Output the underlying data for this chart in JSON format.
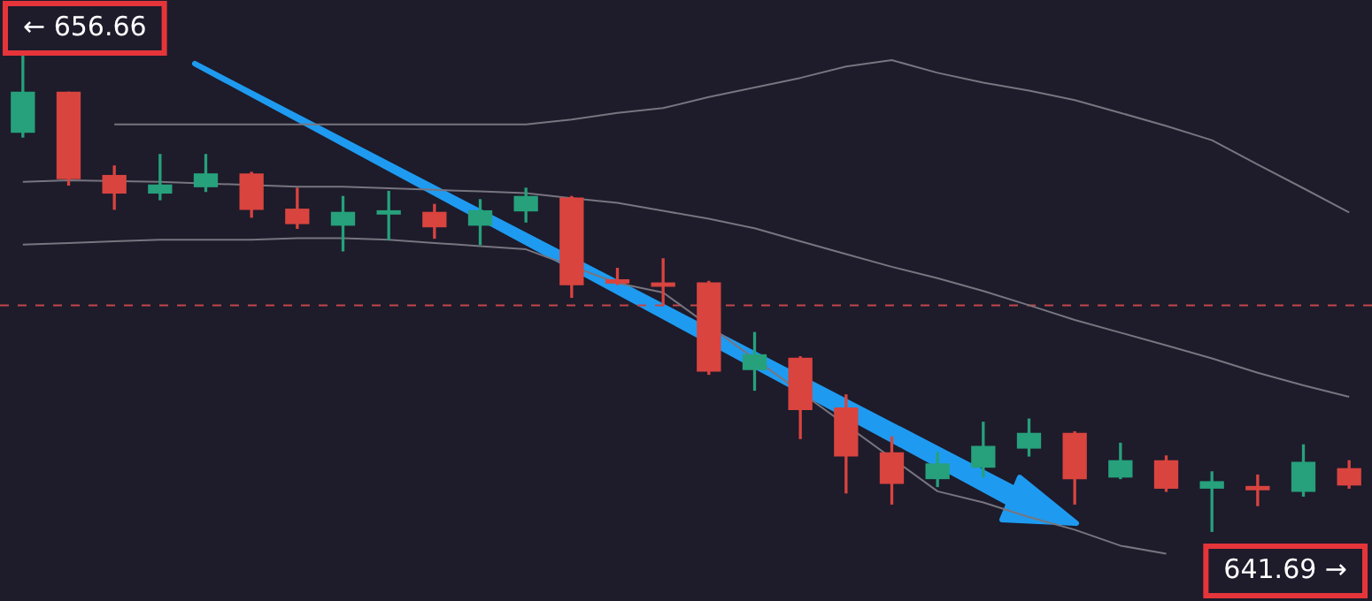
{
  "chart_data": {
    "type": "candlestick",
    "categories": [
      null,
      null,
      null,
      null,
      null,
      null,
      null,
      null,
      null,
      null,
      null,
      null,
      null,
      null,
      null,
      null,
      null,
      null,
      null,
      null,
      null,
      null,
      null,
      null,
      null,
      null,
      null,
      null,
      null,
      null
    ],
    "ohlc": [
      [
        654.24,
        656.66,
        654.09,
        655.5
      ],
      [
        655.5,
        655.5,
        652.58,
        652.78
      ],
      [
        652.88,
        653.18,
        651.82,
        652.33
      ],
      [
        652.33,
        653.54,
        652.12,
        652.58
      ],
      [
        652.53,
        653.54,
        652.38,
        652.93
      ],
      [
        652.93,
        652.98,
        651.57,
        651.82
      ],
      [
        651.82,
        652.48,
        651.22,
        651.37
      ],
      [
        651.32,
        652.22,
        650.51,
        651.72
      ],
      [
        651.67,
        652.38,
        650.86,
        651.77
      ],
      [
        651.72,
        651.97,
        650.91,
        651.27
      ],
      [
        651.32,
        652.12,
        650.71,
        651.77
      ],
      [
        651.77,
        652.48,
        651.42,
        652.22
      ],
      [
        652.17,
        652.22,
        649.05,
        649.45
      ],
      [
        649.6,
        649.96,
        649.45,
        649.5
      ],
      [
        649.5,
        650.26,
        648.8,
        649.4
      ],
      [
        649.5,
        649.55,
        646.63,
        646.73
      ],
      [
        646.78,
        647.94,
        646.13,
        647.24
      ],
      [
        647.13,
        647.18,
        644.61,
        645.52
      ],
      [
        645.57,
        645.98,
        642.9,
        644.06
      ],
      [
        644.16,
        644.66,
        642.55,
        643.2
      ],
      [
        643.35,
        644.16,
        643.1,
        643.81
      ],
      [
        643.71,
        645.12,
        643.4,
        644.36
      ],
      [
        644.31,
        645.22,
        644.06,
        644.77
      ],
      [
        644.77,
        644.82,
        642.55,
        643.35
      ],
      [
        643.4,
        644.46,
        643.35,
        643.91
      ],
      [
        643.91,
        644.06,
        642.95,
        643.05
      ],
      [
        643.05,
        643.56,
        641.69,
        643.25
      ],
      [
        643.1,
        643.46,
        642.5,
        643.0
      ],
      [
        642.95,
        644.41,
        642.8,
        643.86
      ],
      [
        643.66,
        643.91,
        643.05,
        643.15
      ]
    ],
    "colors": [
      "#26a17b",
      "#d9443f",
      "#d9443f",
      "#26a17b",
      "#26a17b",
      "#d9443f",
      "#d9443f",
      "#26a17b",
      "#26a17b",
      "#d9443f",
      "#26a17b",
      "#26a17b",
      "#d9443f",
      "#d9443f",
      "#d9443f",
      "#d9443f",
      "#26a17b",
      "#d9443f",
      "#d9443f",
      "#d9443f",
      "#26a17b",
      "#26a17b",
      "#26a17b",
      "#d9443f",
      "#26a17b",
      "#d9443f",
      "#26a17b",
      "#d9443f",
      "#26a17b",
      "#d9443f"
    ],
    "series": [
      {
        "type": "line",
        "color": "#77757f",
        "values": [
          null,
          null,
          654.49,
          654.49,
          654.49,
          654.49,
          654.49,
          654.49,
          654.49,
          654.49,
          654.49,
          654.49,
          654.64,
          654.85,
          655.0,
          655.35,
          655.65,
          655.95,
          656.31,
          656.51,
          656.11,
          655.8,
          655.55,
          655.25,
          654.85,
          654.44,
          653.99,
          653.23,
          652.48,
          651.72
        ]
      },
      {
        "type": "line",
        "color": "#77757f",
        "values": [
          652.68,
          652.73,
          null,
          652.68,
          null,
          null,
          652.53,
          652.53,
          652.48,
          652.43,
          652.38,
          652.33,
          652.17,
          652.02,
          651.77,
          651.52,
          651.22,
          650.81,
          650.41,
          650.01,
          649.65,
          649.25,
          648.8,
          648.34,
          647.94,
          647.54,
          647.13,
          646.68,
          646.28,
          645.92
        ]
      },
      {
        "type": "line",
        "color": "#77757f",
        "values": [
          650.71,
          650.76,
          650.81,
          650.86,
          650.86,
          650.86,
          650.91,
          650.91,
          650.86,
          650.76,
          650.66,
          650.56,
          null,
          649.5,
          649.2,
          null,
          null,
          null,
          null,
          null,
          642.95,
          642.6,
          642.14,
          641.74,
          641.24,
          640.99,
          null,
          null,
          null,
          null
        ]
      }
    ],
    "ylim": [
      639.5,
      658.4
    ],
    "ref_lines": [
      {
        "axis": "y",
        "value": 648.8,
        "color": "#c2474a",
        "line_style": "dashed"
      }
    ],
    "annotations": [
      "← 656.66",
      "641.69 →"
    ],
    "legend": false
  }
}
